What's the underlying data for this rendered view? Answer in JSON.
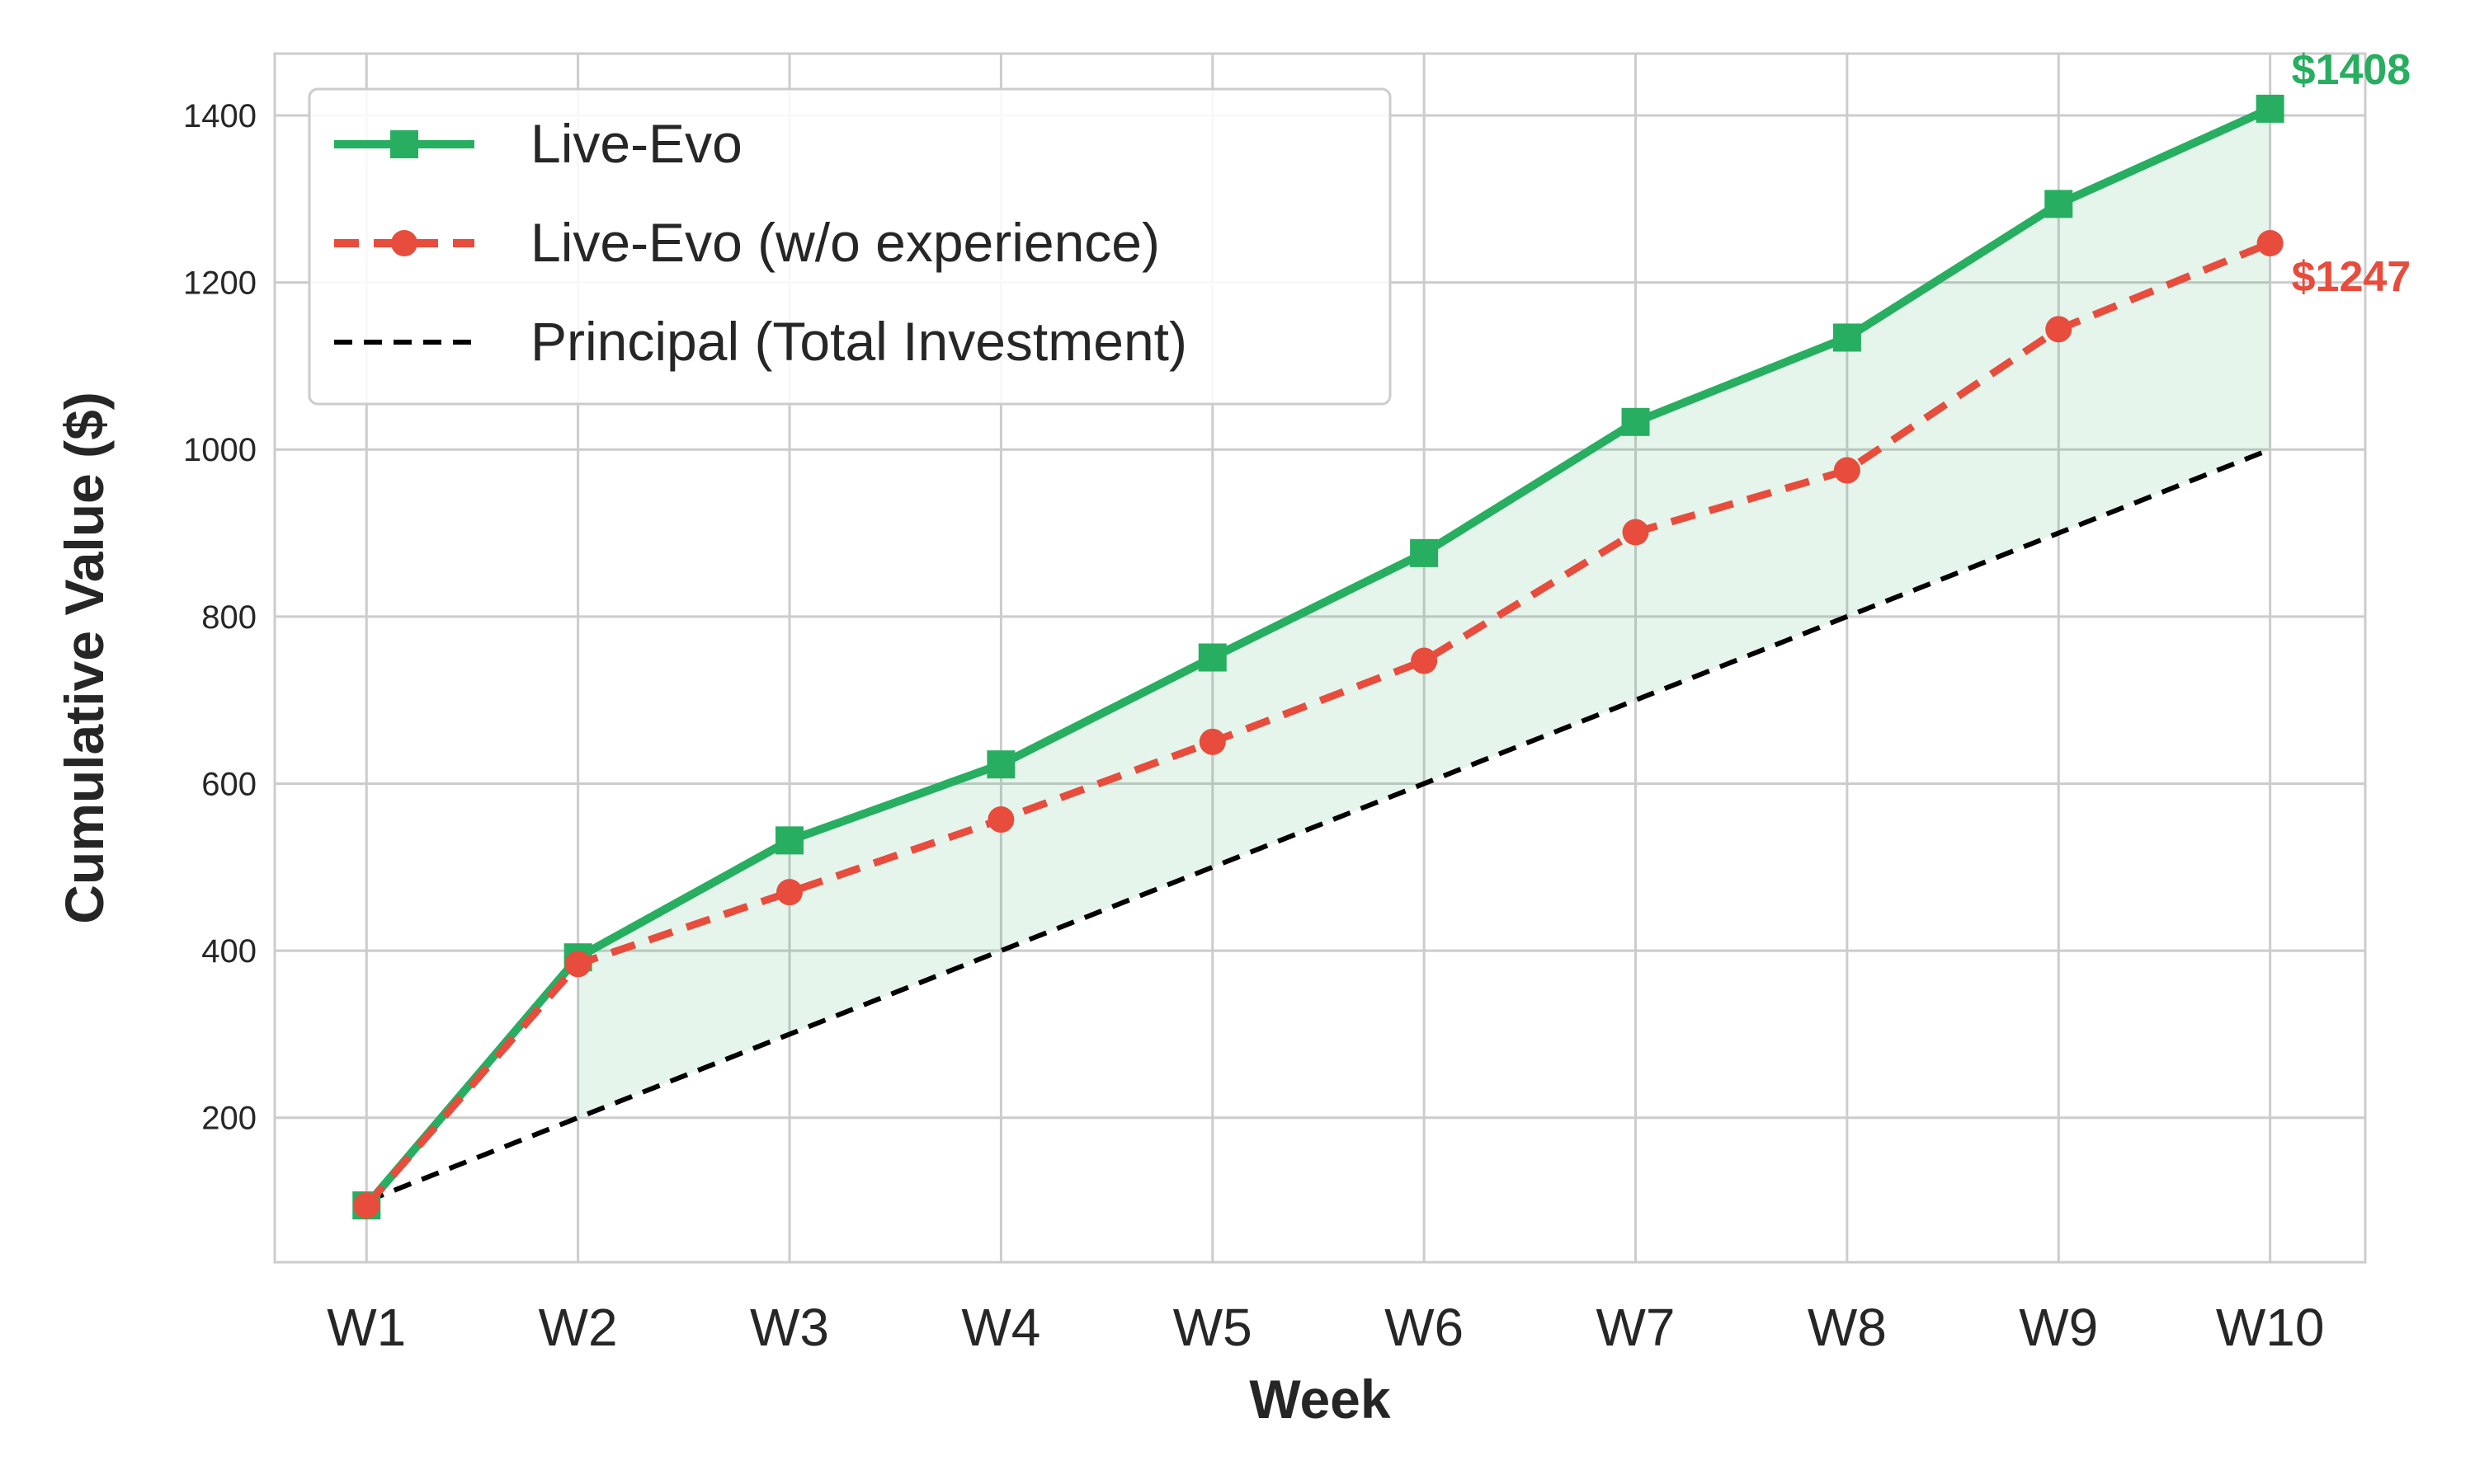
{
  "chart_data": {
    "type": "line",
    "title": "",
    "xlabel": "Week",
    "ylabel": "Cumulative Value ($)",
    "categories": [
      "W1",
      "W2",
      "W3",
      "W4",
      "W5",
      "W6",
      "W7",
      "W8",
      "W9",
      "W10"
    ],
    "ylim": [
      27,
      1474
    ],
    "yticks": [
      200,
      400,
      600,
      800,
      1000,
      1200,
      1400
    ],
    "grid": true,
    "legend_position": "top-left",
    "series": [
      {
        "name": "Live-Evo",
        "color": "#27ae60",
        "style": "solid",
        "marker": "square",
        "values": [
          95,
          392,
          532,
          623,
          751,
          876,
          1033,
          1134,
          1294,
          1408
        ]
      },
      {
        "name": "Live-Evo (w/o experience)",
        "color": "#e74c3c",
        "style": "dashed",
        "marker": "circle",
        "values": [
          95,
          384,
          470,
          557,
          650,
          747,
          901,
          975,
          1144,
          1247
        ]
      },
      {
        "name": "Principal (Total Investment)",
        "color": "#000000",
        "style": "dashed",
        "marker": "none",
        "values": [
          100,
          200,
          300,
          400,
          500,
          600,
          700,
          800,
          900,
          1000
        ]
      }
    ],
    "fill_between": {
      "upper": "Live-Evo",
      "lower": "Principal (Total Investment)",
      "color": "#27ae60",
      "opacity": 0.12
    },
    "annotations": [
      {
        "text": "$1408",
        "series": "Live-Evo",
        "color": "#27ae60"
      },
      {
        "text": "$1247",
        "series": "Live-Evo (w/o experience)",
        "color": "#e74c3c"
      }
    ]
  }
}
